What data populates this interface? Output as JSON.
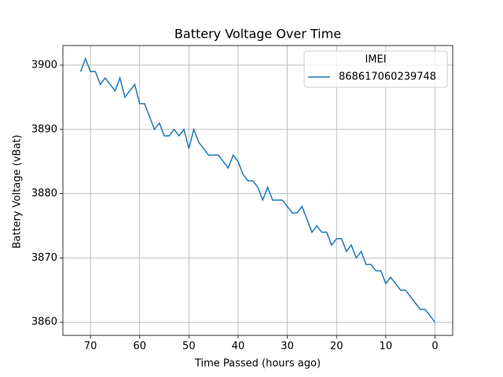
{
  "chart_data": {
    "type": "line",
    "title": "Battery Voltage Over Time",
    "xlabel": "Time Passed (hours ago)",
    "ylabel": "Battery Voltage (vBat)",
    "legend_title": "IMEI",
    "legend_loc": "upper right",
    "grid": true,
    "xlim": [
      75.6,
      -3.6
    ],
    "xticks": [
      70,
      60,
      50,
      40,
      30,
      20,
      10,
      0
    ],
    "ylim": [
      3857.95,
      3903.05
    ],
    "yticks": [
      3860,
      3870,
      3880,
      3890,
      3900
    ],
    "x": [
      72,
      71,
      70,
      69,
      68,
      67,
      66,
      65,
      64,
      63,
      62,
      61,
      60,
      59,
      58,
      57,
      56,
      55,
      54,
      53,
      52,
      51,
      50,
      49,
      48,
      47,
      46,
      45,
      44,
      43,
      42,
      41,
      40,
      39,
      38,
      37,
      36,
      35,
      34,
      33,
      32,
      31,
      30,
      29,
      28,
      27,
      26,
      25,
      24,
      23,
      22,
      21,
      20,
      19,
      18,
      17,
      16,
      15,
      14,
      13,
      12,
      11,
      10,
      9,
      8,
      7,
      6,
      5,
      4,
      3,
      2,
      1,
      0
    ],
    "series": [
      {
        "name": "868617060239748",
        "color": "#1f77b4",
        "values": [
          3899,
          3901,
          3899,
          3899,
          3897,
          3898,
          3897,
          3896,
          3898,
          3895,
          3896,
          3897,
          3894,
          3894,
          3892,
          3890,
          3891,
          3889,
          3889,
          3890,
          3889,
          3890,
          3887,
          3890,
          3888,
          3887,
          3886,
          3886,
          3886,
          3885,
          3884,
          3886,
          3885,
          3883,
          3882,
          3882,
          3881,
          3879,
          3881,
          3879,
          3879,
          3879,
          3878,
          3877,
          3877,
          3878,
          3876,
          3874,
          3875,
          3874,
          3874,
          3872,
          3873,
          3873,
          3871,
          3872,
          3870,
          3871,
          3869,
          3869,
          3868,
          3868,
          3866,
          3867,
          3866,
          3865,
          3865,
          3864,
          3863,
          3862,
          3862,
          3861,
          3860
        ]
      }
    ]
  }
}
